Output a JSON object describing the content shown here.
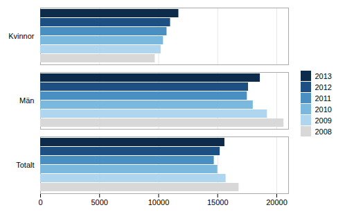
{
  "chart_data": {
    "type": "bar",
    "orientation": "horizontal",
    "categories": [
      "Kvinnor",
      "Män",
      "Totalt"
    ],
    "series": [
      {
        "name": "2013",
        "color": "#0d2b4a",
        "values": [
          11700,
          18600,
          15600
        ]
      },
      {
        "name": "2012",
        "color": "#1e4f82",
        "values": [
          11000,
          17600,
          15200
        ]
      },
      {
        "name": "2011",
        "color": "#4a8fc2",
        "values": [
          10700,
          17500,
          14700
        ]
      },
      {
        "name": "2010",
        "color": "#7ab8de",
        "values": [
          10400,
          18000,
          15000
        ]
      },
      {
        "name": "2009",
        "color": "#b0d5ee",
        "values": [
          10200,
          19200,
          15700
        ]
      },
      {
        "name": "2008",
        "color": "#d8d8d8",
        "values": [
          9700,
          20600,
          16800
        ]
      }
    ],
    "xlim": [
      0,
      21000
    ],
    "xticks": [
      0,
      5000,
      10000,
      15000,
      20000
    ],
    "grid": true,
    "legend": "right"
  }
}
